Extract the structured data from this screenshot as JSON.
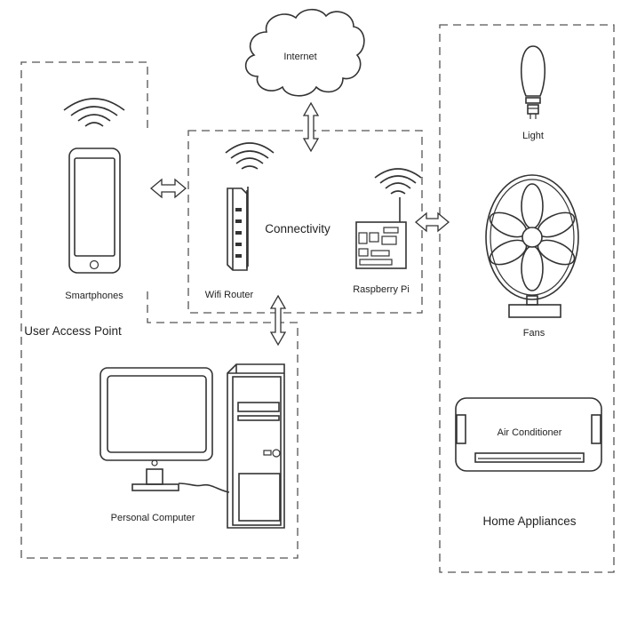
{
  "nodes": {
    "internet": "Internet",
    "light": "Light",
    "fans": "Fans",
    "air_conditioner": "Air Conditioner",
    "smartphones": "Smartphones",
    "wifi_router": "Wifi Router",
    "raspberry_pi": "Raspberry Pi",
    "personal_computer": "Personal Computer"
  },
  "groups": {
    "user_access_point": "User Access Point",
    "connectivity": "Connectivity",
    "home_appliances": "Home Appliances"
  },
  "icons": [
    "cloud-icon",
    "wifi-icon",
    "smartphone-icon",
    "router-icon",
    "raspberry-pi-icon",
    "bulb-icon",
    "fan-icon",
    "air-conditioner-icon",
    "monitor-icon",
    "tower-pc-icon",
    "double-arrow-icon"
  ]
}
